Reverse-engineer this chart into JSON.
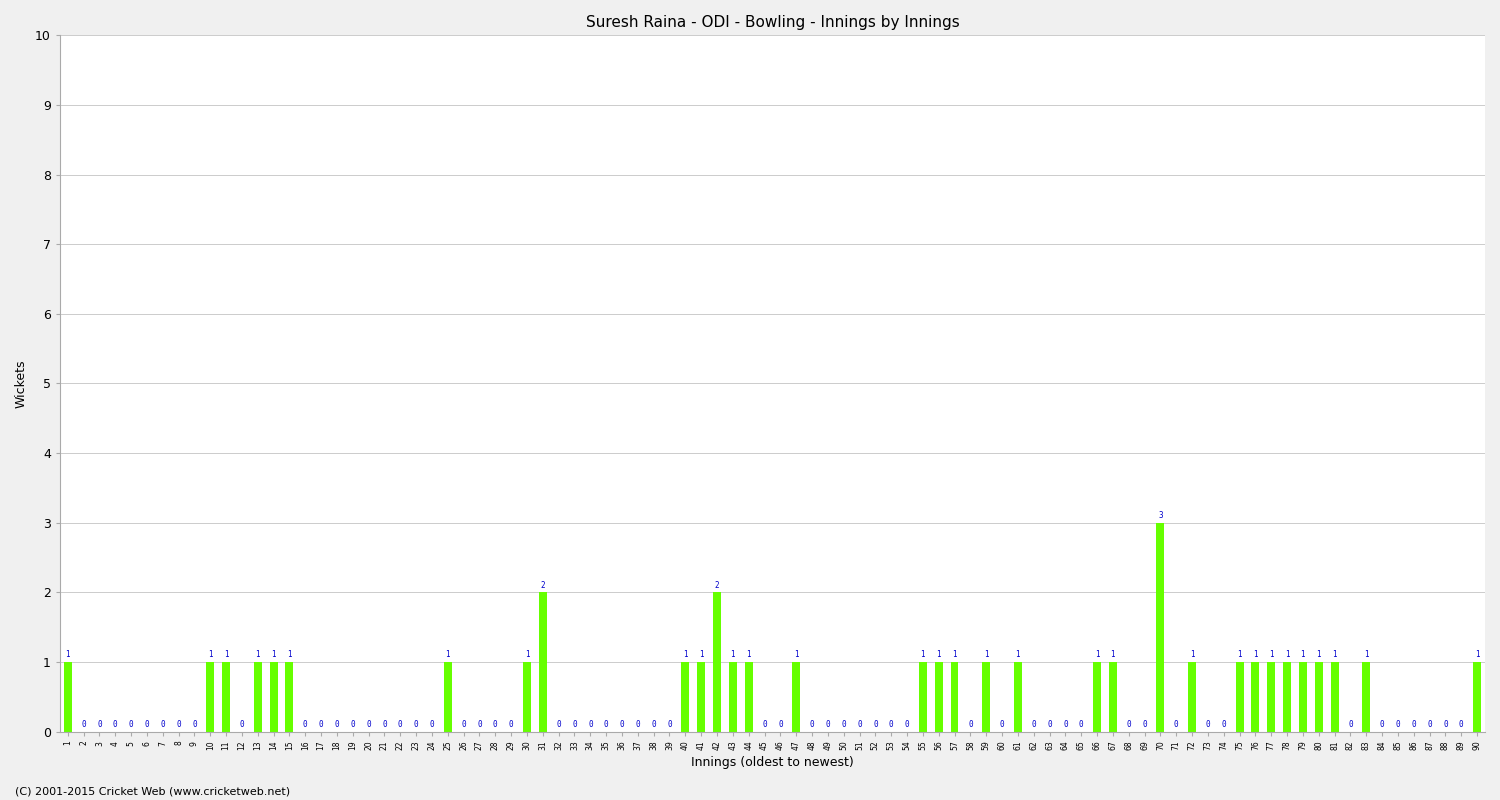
{
  "title": "Suresh Raina - ODI - Bowling - Innings by Innings",
  "xlabel": "Innings (oldest to newest)",
  "ylabel": "Wickets",
  "ylim": [
    0,
    10
  ],
  "yticks": [
    0,
    1,
    2,
    3,
    4,
    5,
    6,
    7,
    8,
    9,
    10
  ],
  "bar_color": "#66ff00",
  "label_color": "#0000cc",
  "background_color": "#f0f0f0",
  "plot_bg_color": "#ffffff",
  "grid_color": "#cccccc",
  "footnote": "(C) 2001-2015 Cricket Web (www.cricketweb.net)",
  "innings": [
    1,
    2,
    3,
    4,
    5,
    6,
    7,
    8,
    9,
    10,
    11,
    12,
    13,
    14,
    15,
    16,
    17,
    18,
    19,
    20,
    21,
    22,
    23,
    24,
    25,
    26,
    27,
    28,
    29,
    30,
    31,
    32,
    33,
    34,
    35,
    36,
    37,
    38,
    39,
    40,
    41,
    42,
    43,
    44,
    45,
    46,
    47,
    48,
    49,
    50,
    51,
    52,
    53,
    54,
    55,
    56,
    57,
    58,
    59,
    60,
    61,
    62,
    63,
    64,
    65,
    66,
    67,
    68,
    69,
    70,
    71,
    72,
    73,
    74,
    75,
    76,
    77,
    78,
    79,
    80,
    81,
    82,
    83,
    84,
    85,
    86,
    87,
    88,
    89,
    90
  ],
  "wickets": [
    1,
    0,
    0,
    0,
    0,
    0,
    0,
    0,
    0,
    1,
    1,
    0,
    1,
    1,
    1,
    0,
    0,
    0,
    0,
    0,
    0,
    0,
    0,
    0,
    1,
    0,
    0,
    0,
    0,
    1,
    2,
    0,
    0,
    0,
    0,
    0,
    0,
    0,
    0,
    1,
    1,
    2,
    1,
    1,
    0,
    0,
    1,
    0,
    0,
    0,
    0,
    0,
    0,
    0,
    1,
    1,
    1,
    0,
    1,
    0,
    1,
    0,
    0,
    0,
    0,
    1,
    1,
    0,
    0,
    3,
    0,
    1,
    0,
    0,
    1,
    1,
    1,
    1,
    1,
    1,
    1,
    0,
    1,
    0,
    0,
    0,
    0,
    0,
    0,
    1
  ]
}
